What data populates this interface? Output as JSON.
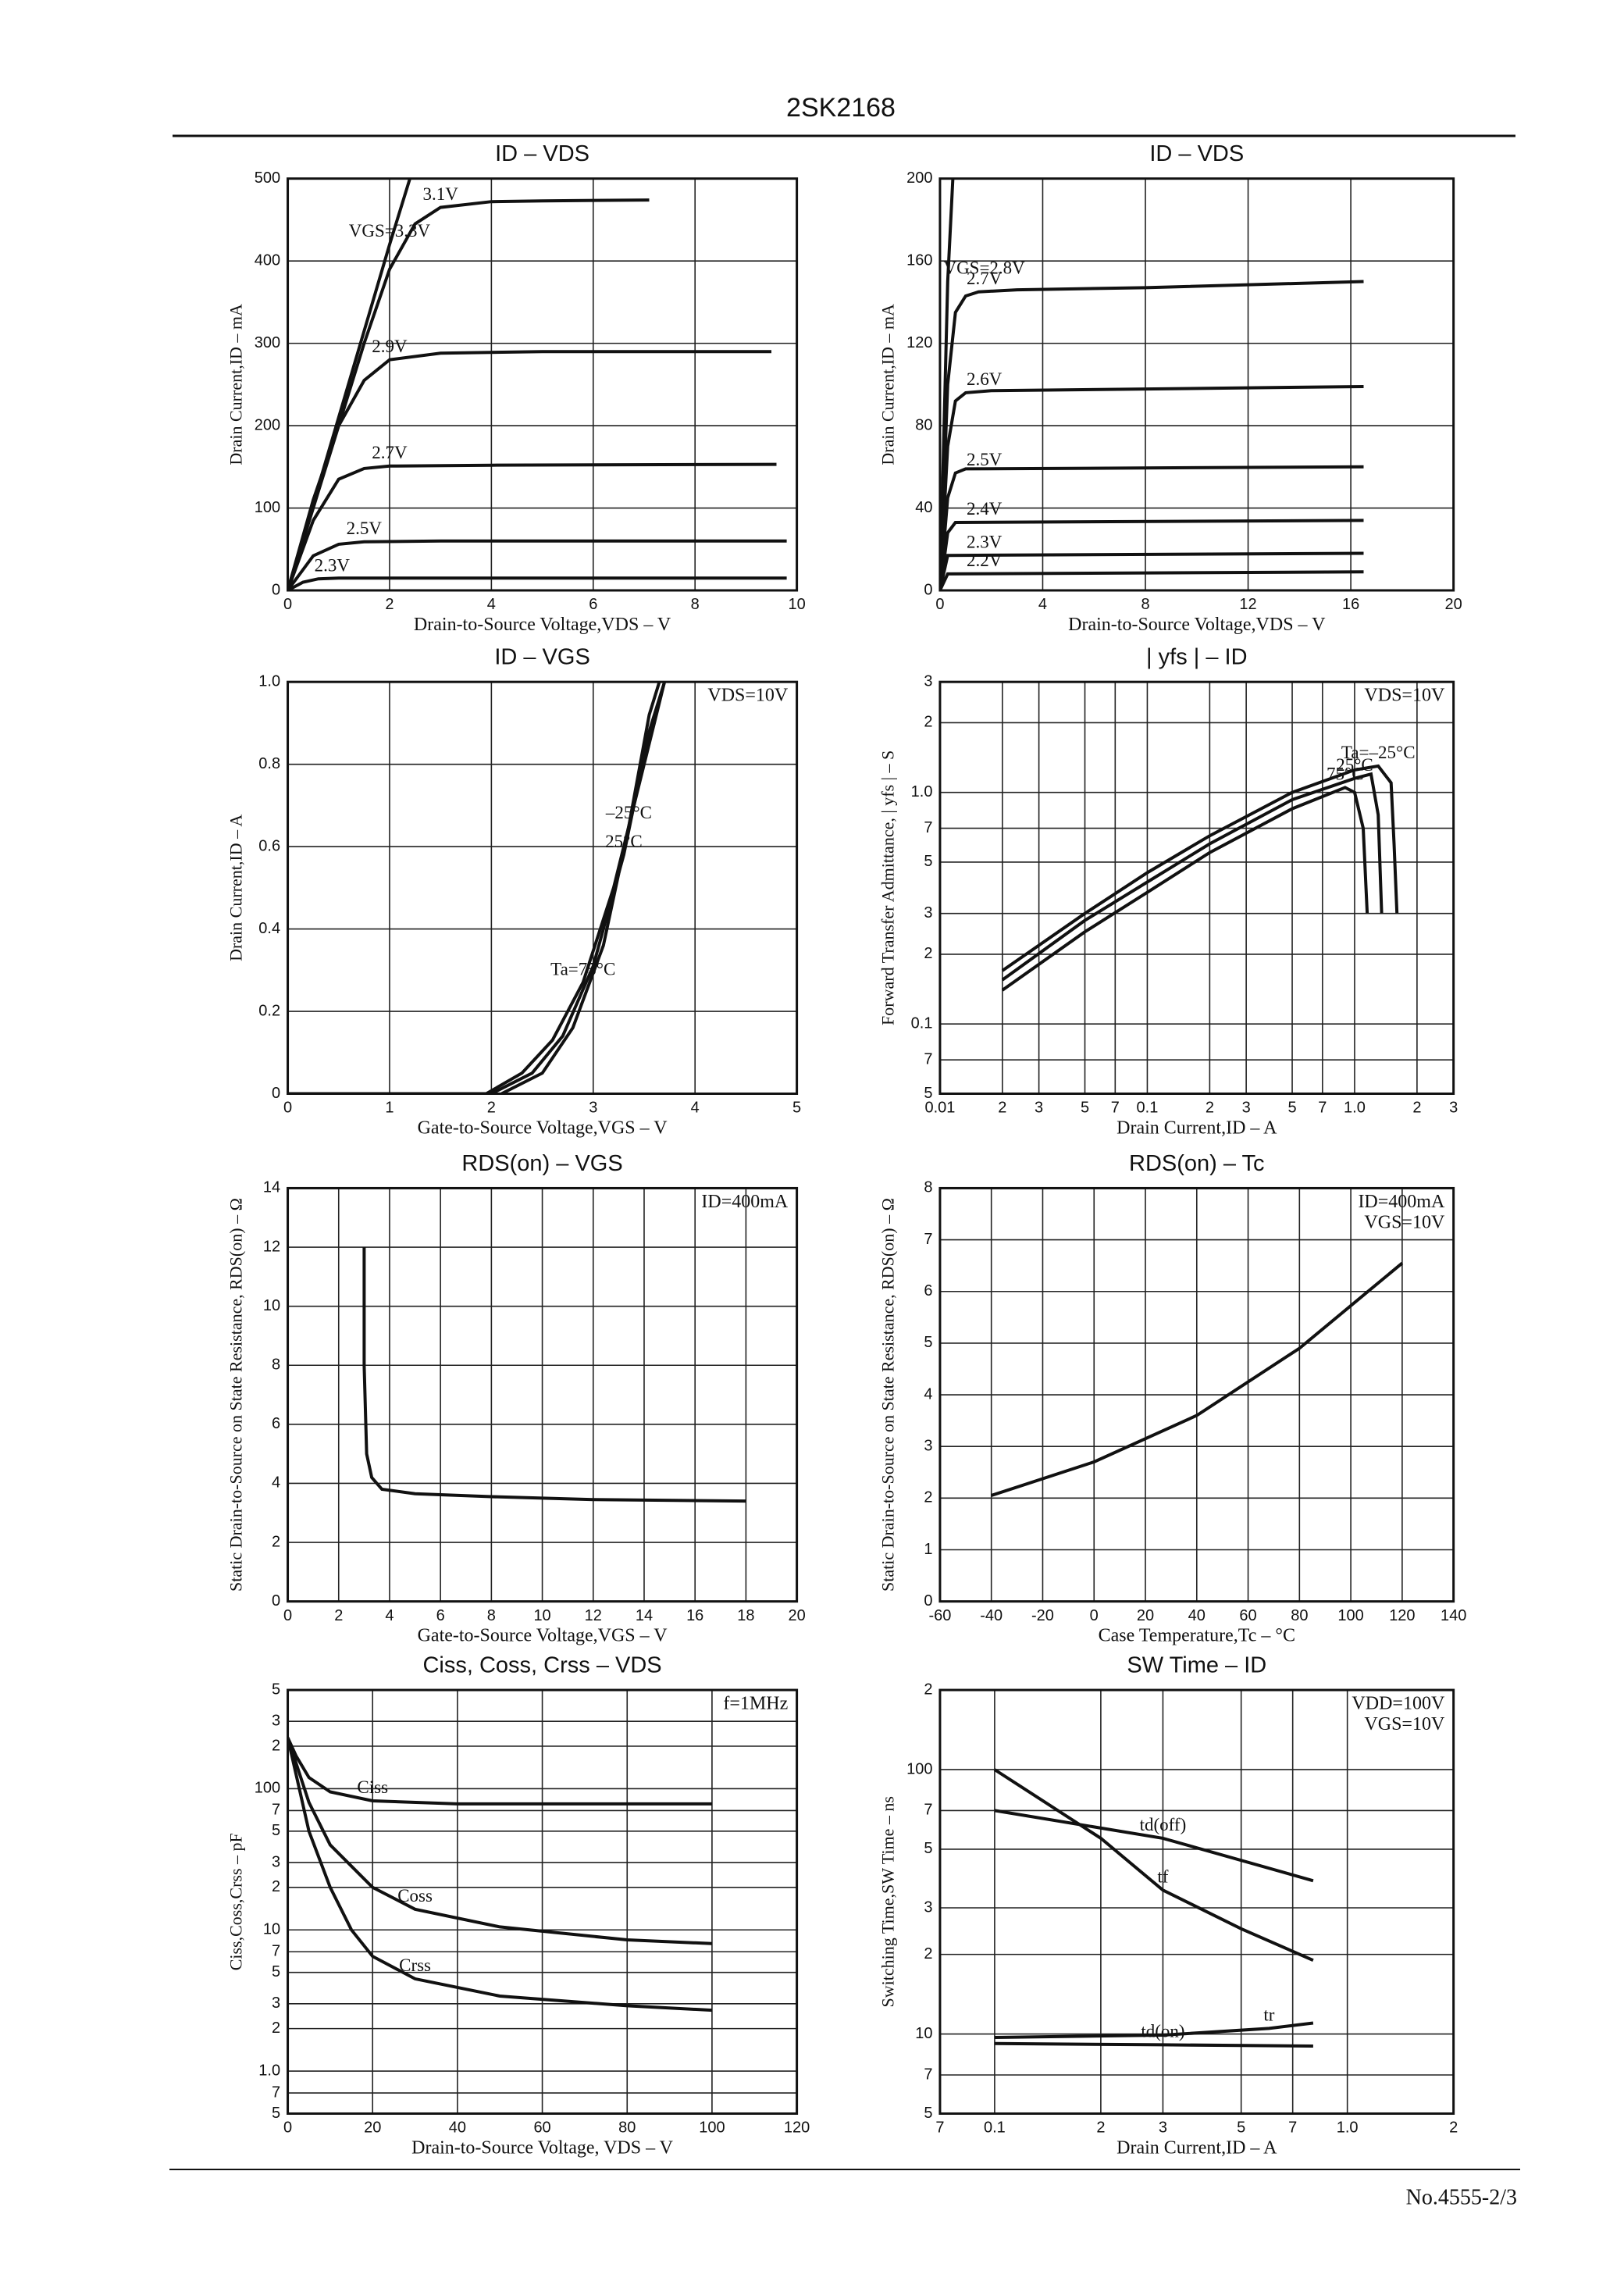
{
  "header": {
    "title": "2SK2168"
  },
  "footer": {
    "page": "No.4555-2/3"
  },
  "chart_data": [
    {
      "type": "line",
      "title": "ID – VDS",
      "xlabel": "Drain-to-Source Voltage,VDS – V",
      "ylabel": "Drain Current,ID – mA",
      "color": "#111111",
      "grid": true,
      "xlim": [
        0,
        10
      ],
      "ylim": [
        0,
        500
      ],
      "xticks": [
        0,
        2,
        4,
        6,
        8,
        10
      ],
      "yticks": [
        0,
        100,
        200,
        300,
        400,
        500
      ],
      "annotations": [],
      "series": [
        {
          "name": "VGS=3.3V",
          "x": [
            0,
            1,
            2,
            2.4
          ],
          "values": [
            0,
            210,
            420,
            500
          ]
        },
        {
          "name": "3.1V",
          "x": [
            0,
            0.5,
            1,
            1.5,
            2,
            2.5,
            3,
            4,
            5,
            7.1
          ],
          "values": [
            0,
            100,
            200,
            300,
            390,
            445,
            465,
            472,
            473,
            474
          ]
        },
        {
          "name": "2.9V",
          "x": [
            0,
            0.5,
            1,
            1.5,
            2,
            3,
            5,
            9.5
          ],
          "values": [
            0,
            110,
            200,
            255,
            280,
            288,
            290,
            290
          ]
        },
        {
          "name": "2.7V",
          "x": [
            0,
            0.5,
            1,
            1.5,
            2,
            4,
            9.6
          ],
          "values": [
            0,
            85,
            135,
            148,
            151,
            152,
            153
          ]
        },
        {
          "name": "2.5V",
          "x": [
            0,
            0.5,
            1,
            1.5,
            3,
            9.8
          ],
          "values": [
            0,
            42,
            56,
            59,
            60,
            60
          ]
        },
        {
          "name": "2.3V",
          "x": [
            0,
            0.3,
            0.6,
            1,
            9.8
          ],
          "values": [
            0,
            10,
            14,
            15,
            15
          ]
        }
      ]
    },
    {
      "type": "line",
      "title": "ID – VDS",
      "xlabel": "Drain-to-Source Voltage,VDS – V",
      "ylabel": "Drain Current,ID – mA",
      "color": "#111111",
      "grid": true,
      "xlim": [
        0,
        20
      ],
      "ylim": [
        0,
        200
      ],
      "xticks": [
        0,
        4,
        8,
        12,
        16,
        20
      ],
      "yticks": [
        0,
        40,
        80,
        120,
        160,
        200
      ],
      "annotations": [],
      "series": [
        {
          "name": "VGS=2.8V",
          "x": [
            0,
            0.3,
            0.5
          ],
          "values": [
            0,
            150,
            200
          ]
        },
        {
          "name": "2.7V",
          "x": [
            0,
            0.3,
            0.6,
            1,
            1.5,
            3,
            8,
            16.5
          ],
          "values": [
            0,
            100,
            135,
            143,
            145,
            146,
            147,
            150
          ]
        },
        {
          "name": "2.6V",
          "x": [
            0,
            0.3,
            0.6,
            1,
            2,
            16.5
          ],
          "values": [
            0,
            70,
            92,
            96,
            97,
            99
          ]
        },
        {
          "name": "2.5V",
          "x": [
            0,
            0.3,
            0.6,
            1,
            16.5
          ],
          "values": [
            0,
            45,
            57,
            59,
            60
          ]
        },
        {
          "name": "2.4V",
          "x": [
            0,
            0.3,
            0.6,
            16.5
          ],
          "values": [
            0,
            28,
            33,
            34
          ]
        },
        {
          "name": "2.3V",
          "x": [
            0,
            0.3,
            16.5
          ],
          "values": [
            0,
            17,
            18
          ]
        },
        {
          "name": "2.2V",
          "x": [
            0,
            0.3,
            16.5
          ],
          "values": [
            0,
            8,
            9
          ]
        }
      ]
    },
    {
      "type": "line",
      "title": "ID – VGS",
      "xlabel": "Gate-to-Source Voltage,VGS – V",
      "ylabel": "Drain Current,ID – A",
      "color": "#111111",
      "grid": true,
      "xlim": [
        0,
        5
      ],
      "ylim": [
        0,
        1
      ],
      "xticks": [
        0,
        1,
        2,
        3,
        4,
        5
      ],
      "yticks": [
        0,
        0.2,
        0.4,
        0.6,
        0.8,
        {
          "value": 1,
          "label": "1.0"
        }
      ],
      "annotations": [
        "VDS=10V"
      ],
      "series": [
        {
          "name": "Ta=75°C",
          "x": [
            0,
            1.95,
            2.3,
            2.6,
            2.9,
            3.2,
            3.5,
            3.7
          ],
          "values": [
            0,
            0,
            0.05,
            0.13,
            0.27,
            0.5,
            0.8,
            1
          ]
        },
        {
          "name": "25°C",
          "x": [
            2,
            2.4,
            2.7,
            3,
            3.3,
            3.55,
            3.7
          ],
          "values": [
            0,
            0.05,
            0.14,
            0.31,
            0.58,
            0.88,
            1
          ]
        },
        {
          "name": "–25°C",
          "x": [
            2.1,
            2.5,
            2.8,
            3.1,
            3.35,
            3.55,
            3.65
          ],
          "values": [
            0,
            0.05,
            0.16,
            0.36,
            0.65,
            0.92,
            1
          ]
        }
      ]
    },
    {
      "type": "line",
      "title": "| yfs | – ID",
      "xlabel": "Drain Current,ID – A",
      "ylabel": "Forward Transfer Admittance, | yfs | – S",
      "color": "#111111",
      "grid": true,
      "xscale": "log",
      "yscale": "log",
      "xlim": [
        0.01,
        3
      ],
      "ylim": [
        0.05,
        3
      ],
      "xticks": [
        0.01,
        {
          "value": 0.02,
          "label": "2"
        },
        {
          "value": 0.03,
          "label": "3"
        },
        {
          "value": 0.05,
          "label": "5"
        },
        {
          "value": 0.07,
          "label": "7"
        },
        0.1,
        {
          "value": 0.2,
          "label": "2"
        },
        {
          "value": 0.3,
          "label": "3"
        },
        {
          "value": 0.5,
          "label": "5"
        },
        {
          "value": 0.7,
          "label": "7"
        },
        {
          "value": 1,
          "label": "1.0"
        },
        2,
        3
      ],
      "yticks": [
        {
          "value": 0.05,
          "label": "5"
        },
        {
          "value": 0.07,
          "label": "7"
        },
        0.1,
        {
          "value": 0.2,
          "label": "2"
        },
        {
          "value": 0.3,
          "label": "3"
        },
        {
          "value": 0.5,
          "label": "5"
        },
        {
          "value": 0.7,
          "label": "7"
        },
        {
          "value": 1,
          "label": "1.0"
        },
        2,
        3
      ],
      "annotations": [
        "VDS=10V"
      ],
      "series": [
        {
          "name": "Ta=–25°C",
          "x": [
            0.02,
            0.05,
            0.1,
            0.2,
            0.5,
            1,
            1.3,
            1.5,
            1.55,
            1.6
          ],
          "values": [
            0.17,
            0.3,
            0.45,
            0.65,
            1,
            1.25,
            1.3,
            1.1,
            0.6,
            0.3
          ]
        },
        {
          "name": "25°C",
          "x": [
            0.02,
            0.05,
            0.1,
            0.2,
            0.5,
            1,
            1.2,
            1.3,
            1.35
          ],
          "values": [
            0.155,
            0.28,
            0.41,
            0.6,
            0.93,
            1.15,
            1.2,
            0.8,
            0.3
          ]
        },
        {
          "name": "75°C",
          "x": [
            0.02,
            0.05,
            0.1,
            0.2,
            0.5,
            0.9,
            1,
            1.1,
            1.15
          ],
          "values": [
            0.14,
            0.25,
            0.37,
            0.55,
            0.85,
            1.05,
            1,
            0.7,
            0.3
          ]
        }
      ]
    },
    {
      "type": "line",
      "title": "RDS(on) – VGS",
      "xlabel": "Gate-to-Source Voltage,VGS – V",
      "ylabel": "Static Drain-to-Source on State Resistance, RDS(on) – Ω",
      "color": "#111111",
      "grid": true,
      "xlim": [
        0,
        20
      ],
      "ylim": [
        0,
        14
      ],
      "xticks": [
        0,
        2,
        4,
        6,
        8,
        10,
        12,
        14,
        16,
        18,
        20
      ],
      "yticks": [
        0,
        2,
        4,
        6,
        8,
        10,
        12,
        14
      ],
      "annotations": [
        "ID=400mA"
      ],
      "series": [
        {
          "x": [
            3,
            3,
            3.1,
            3.3,
            3.7,
            5,
            8,
            12,
            18
          ],
          "values": [
            12,
            8,
            5,
            4.2,
            3.8,
            3.65,
            3.55,
            3.45,
            3.4
          ]
        }
      ]
    },
    {
      "type": "line",
      "title": "RDS(on) – Tc",
      "xlabel": "Case Temperature,Tc – °C",
      "ylabel": "Static Drain-to-Source on State Resistance, RDS(on) – Ω",
      "color": "#111111",
      "grid": true,
      "xlim": [
        -60,
        140
      ],
      "ylim": [
        0,
        8
      ],
      "xticks": [
        -60,
        -40,
        -20,
        0,
        20,
        40,
        60,
        80,
        100,
        120,
        140
      ],
      "yticks": [
        0,
        1,
        2,
        3,
        4,
        5,
        6,
        7,
        8
      ],
      "annotations": [
        "ID=400mA",
        "VGS=10V"
      ],
      "series": [
        {
          "x": [
            -40,
            0,
            40,
            80,
            120
          ],
          "values": [
            2.05,
            2.7,
            3.6,
            4.9,
            6.55
          ]
        }
      ]
    },
    {
      "type": "line",
      "title": "Ciss, Coss, Crss – VDS",
      "xlabel": "Drain-to-Source Voltage, VDS – V",
      "ylabel": "Ciss,Coss,Crss – pF",
      "color": "#111111",
      "grid": true,
      "yscale": "log",
      "xlim": [
        0,
        120
      ],
      "ylim": [
        0.5,
        500
      ],
      "xticks": [
        0,
        20,
        40,
        60,
        80,
        100,
        120
      ],
      "yticks": [
        {
          "value": 0.5,
          "label": "5"
        },
        {
          "value": 0.7,
          "label": "7"
        },
        {
          "value": 1,
          "label": "1.0"
        },
        2,
        3,
        5,
        7,
        10,
        {
          "value": 20,
          "label": "2"
        },
        {
          "value": 30,
          "label": "3"
        },
        {
          "value": 50,
          "label": "5"
        },
        {
          "value": 70,
          "label": "7"
        },
        100,
        {
          "value": 200,
          "label": "2"
        },
        {
          "value": 300,
          "label": "3"
        },
        {
          "value": 500,
          "label": "5"
        }
      ],
      "annotations": [
        "f=1MHz"
      ],
      "series": [
        {
          "name": "Ciss",
          "x": [
            0,
            2,
            5,
            10,
            20,
            40,
            100
          ],
          "values": [
            230,
            170,
            120,
            95,
            82,
            78,
            78
          ]
        },
        {
          "name": "Coss",
          "x": [
            0,
            5,
            10,
            20,
            30,
            50,
            80,
            100
          ],
          "values": [
            230,
            80,
            40,
            20,
            14,
            10.5,
            8.5,
            8
          ]
        },
        {
          "name": "Crss",
          "x": [
            0,
            5,
            10,
            15,
            20,
            30,
            50,
            80,
            100
          ],
          "values": [
            230,
            50,
            20,
            10,
            6.5,
            4.5,
            3.4,
            2.9,
            2.7
          ]
        }
      ]
    },
    {
      "type": "line",
      "title": "SW Time – ID",
      "xlabel": "Drain Current,ID – A",
      "ylabel": "Switching Time,SW Time – ns",
      "color": "#111111",
      "grid": true,
      "xscale": "log",
      "yscale": "log",
      "xlim": [
        0.07,
        2
      ],
      "ylim": [
        5,
        200
      ],
      "xticks": [
        {
          "value": 0.07,
          "label": "7"
        },
        0.1,
        {
          "value": 0.2,
          "label": "2"
        },
        {
          "value": 0.3,
          "label": "3"
        },
        {
          "value": 0.5,
          "label": "5"
        },
        {
          "value": 0.7,
          "label": "7"
        },
        {
          "value": 1,
          "label": "1.0"
        },
        2
      ],
      "yticks": [
        5,
        7,
        10,
        {
          "value": 20,
          "label": "2"
        },
        {
          "value": 30,
          "label": "3"
        },
        {
          "value": 50,
          "label": "5"
        },
        {
          "value": 70,
          "label": "7"
        },
        100,
        {
          "value": 200,
          "label": "2"
        }
      ],
      "annotations": [
        "VDD=100V",
        "VGS=10V"
      ],
      "series": [
        {
          "name": "td(off)",
          "x": [
            0.1,
            0.3,
            0.8
          ],
          "values": [
            70,
            55,
            38
          ]
        },
        {
          "name": "tf",
          "x": [
            0.1,
            0.2,
            0.3,
            0.5,
            0.8
          ],
          "values": [
            100,
            55,
            35,
            25,
            19
          ]
        },
        {
          "name": "tr",
          "x": [
            0.1,
            0.3,
            0.6,
            0.8
          ],
          "values": [
            9.7,
            9.9,
            10.5,
            11
          ]
        },
        {
          "name": "td(on)",
          "x": [
            0.1,
            0.3,
            0.8
          ],
          "values": [
            9.2,
            9.1,
            9
          ]
        }
      ]
    }
  ]
}
